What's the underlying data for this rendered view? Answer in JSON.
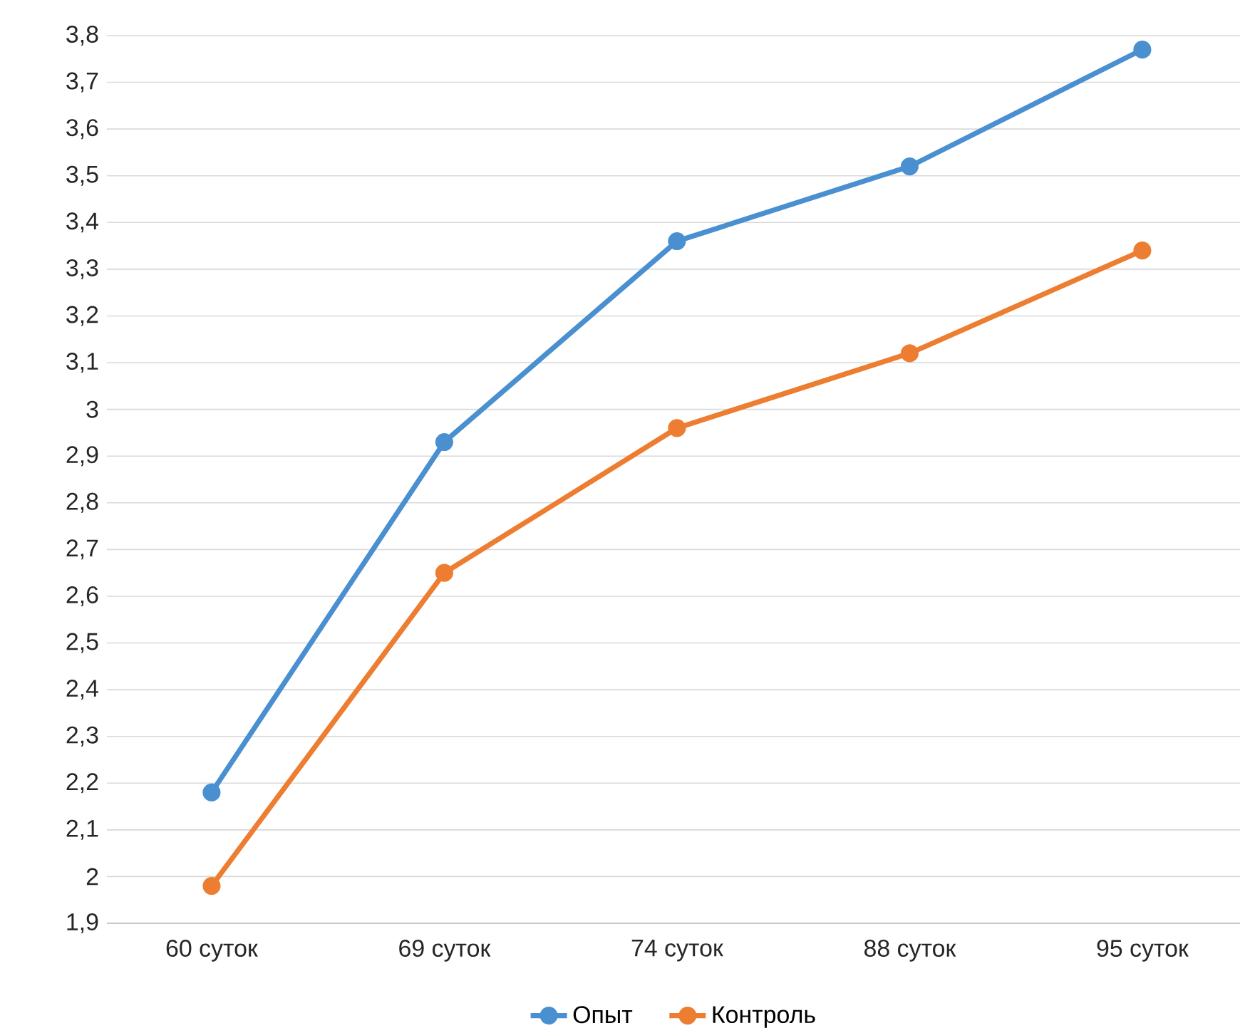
{
  "chart_data": {
    "type": "line",
    "categories": [
      "60 суток",
      "69 суток",
      "74 суток",
      "88 суток",
      "95 суток"
    ],
    "series": [
      {
        "name": "Опыт",
        "color": "#4a90d0",
        "values": [
          2.18,
          2.93,
          3.36,
          3.52,
          3.77
        ]
      },
      {
        "name": "Контроль",
        "color": "#ed7d31",
        "values": [
          1.98,
          2.65,
          2.96,
          3.12,
          3.34
        ]
      }
    ],
    "ylim": [
      1.9,
      3.8
    ],
    "yticks": [
      {
        "value": 1.9,
        "label": "1,9"
      },
      2,
      {
        "value": 2.1,
        "label": "2,1"
      },
      {
        "value": 2.2,
        "label": "2,2"
      },
      {
        "value": 2.3,
        "label": "2,3"
      },
      {
        "value": 2.4,
        "label": "2,4"
      },
      {
        "value": 2.5,
        "label": "2,5"
      },
      {
        "value": 2.6,
        "label": "2,6"
      },
      {
        "value": 2.7,
        "label": "2,7"
      },
      {
        "value": 2.8,
        "label": "2,8"
      },
      {
        "value": 2.9,
        "label": "2,9"
      },
      3,
      {
        "value": 3.1,
        "label": "3,1"
      },
      {
        "value": 3.2,
        "label": "3,2"
      },
      {
        "value": 3.3,
        "label": "3,3"
      },
      {
        "value": 3.4,
        "label": "3,4"
      },
      {
        "value": 3.5,
        "label": "3,5"
      },
      {
        "value": 3.6,
        "label": "3,6"
      },
      {
        "value": 3.7,
        "label": "3,7"
      },
      {
        "value": 3.8,
        "label": "3,8"
      }
    ],
    "grid": "y",
    "legend": "bottom",
    "marker": "circle",
    "line_style": "solid"
  }
}
